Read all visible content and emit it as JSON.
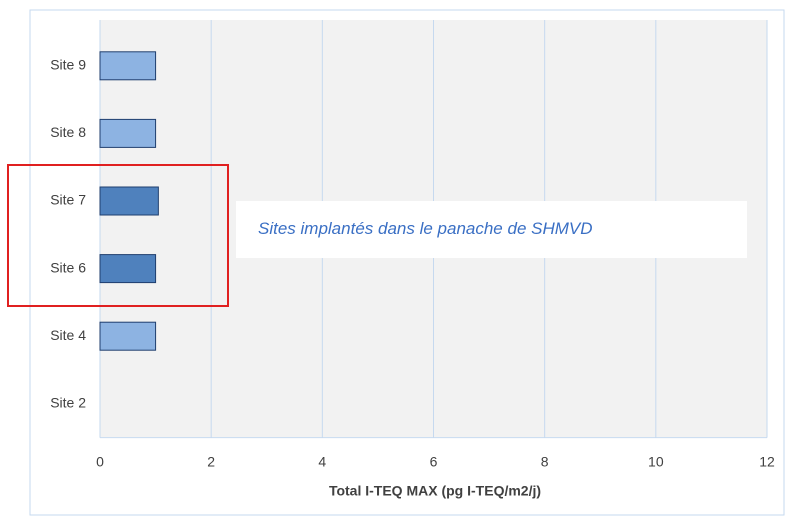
{
  "chart_data": {
    "type": "hbar",
    "categories": [
      "Site 2",
      "Site 4",
      "Site 6",
      "Site 7",
      "Site 8",
      "Site 9"
    ],
    "values": [
      0,
      1.0,
      1.0,
      1.05,
      1.0,
      1.0
    ],
    "colors": [
      "#8db3e2",
      "#8db3e2",
      "#4f81bd",
      "#4f81bd",
      "#8db3e2",
      "#8db3e2"
    ],
    "xlabel": "Total I-TEQ MAX (pg I-TEQ/m2/j)",
    "xlim": [
      0,
      12
    ],
    "xticks": [
      0,
      2,
      4,
      6,
      8,
      10,
      12
    ],
    "grid": true,
    "annotation": "Sites implantés dans le panache de SHMVD"
  }
}
